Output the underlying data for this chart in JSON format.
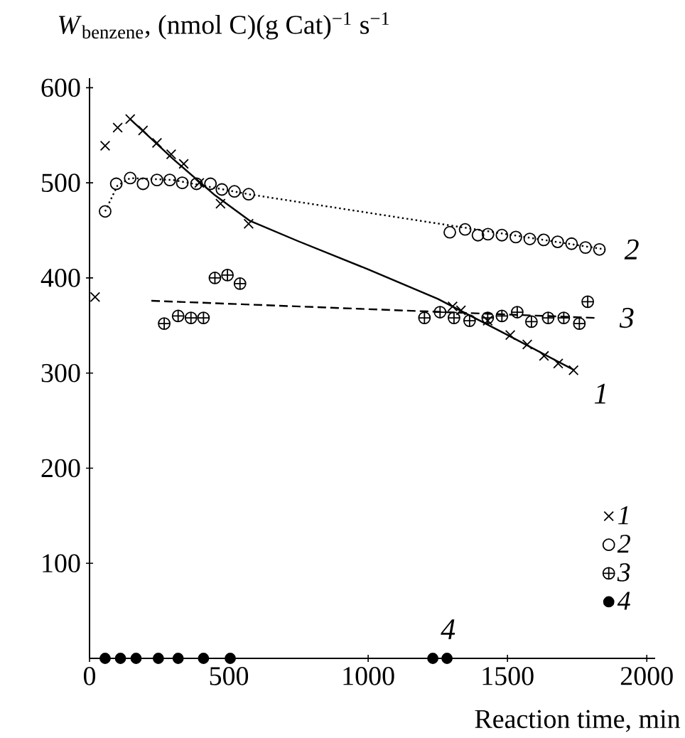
{
  "chart_data": {
    "type": "scatter",
    "xlabel": "Reaction time, min",
    "ylabel": "*W*$_{benzene}$, (nmol C)(g Cat)$^{−1}$ s$^{−1}$",
    "xlim": [
      0,
      2030
    ],
    "ylim": [
      0,
      610
    ],
    "xticks": [
      0,
      500,
      1000,
      1500,
      2000
    ],
    "yticks": [
      100,
      200,
      300,
      400,
      500,
      600
    ],
    "grid": false,
    "legend": "bottom right",
    "series": [
      {
        "name": "1",
        "color": "#000000",
        "marker": "cross",
        "x": [
          20,
          56,
          101,
          146,
          192,
          242,
          293,
          338,
          394,
          470,
          571,
          1303,
          1333,
          1429,
          1510,
          1571,
          1631,
          1682,
          1737
        ],
        "values": [
          380,
          539,
          558,
          567,
          555,
          542,
          530,
          520,
          500,
          478,
          457,
          370,
          366,
          355,
          340,
          330,
          318,
          310,
          303
        ]
      },
      {
        "name": "2",
        "color": "#000000",
        "marker": "circle",
        "x": [
          56,
          96,
          146,
          192,
          242,
          288,
          333,
          384,
          434,
          475,
          520,
          571,
          1293,
          1348,
          1394,
          1430,
          1480,
          1530,
          1580,
          1630,
          1680,
          1730,
          1780,
          1830
        ],
        "values": [
          470,
          499,
          505,
          499,
          503,
          503,
          500,
          499,
          499,
          493,
          491,
          488,
          448,
          451,
          445,
          446,
          445,
          443,
          441,
          440,
          438,
          436,
          432,
          430
        ]
      },
      {
        "name": "3",
        "color": "#000000",
        "x": [
          268,
          318,
          364,
          409,
          450,
          495,
          540,
          1202,
          1258,
          1308,
          1364,
          1429,
          1480,
          1535,
          1586,
          1646,
          1702,
          1758,
          1788
        ],
        "values": [
          352,
          360,
          358,
          358,
          400,
          403,
          394,
          358,
          364,
          358,
          355,
          358,
          360,
          364,
          354,
          358,
          358,
          352,
          375
        ]
      },
      {
        "name": "4",
        "color": "#000000",
        "marker": "dot",
        "x": [
          56,
          111,
          167,
          247,
          318,
          409,
          505,
          1232,
          1283
        ],
        "values": [
          0,
          0,
          0,
          0,
          0,
          0,
          0,
          0,
          0
        ]
      },
      {
        "type": "line",
        "color": "#000000",
        "line_style": "solid",
        "x": [
          146,
          300,
          450,
          576,
          746,
          1000,
          1250,
          1500,
          1740
        ],
        "values": [
          567,
          525,
          487,
          460,
          439,
          409,
          378,
          340,
          303
        ]
      },
      {
        "type": "line",
        "color": "#000000",
        "line_style": "dotted",
        "x": [
          56,
          100,
          146,
          300,
          571,
          1850
        ],
        "values": [
          470,
          497,
          505,
          503,
          488,
          430
        ]
      },
      {
        "type": "line",
        "color": "#000000",
        "line_style": "dashed",
        "x": [
          222,
          1813
        ],
        "values": [
          376,
          358
        ]
      }
    ],
    "annotations": [
      {
        "text": "1",
        "x": 1740,
        "y": 303
      },
      {
        "text": "2",
        "x": 1830,
        "y": 430
      },
      {
        "text": "3",
        "x": 1813,
        "y": 358
      },
      {
        "text": "4",
        "x": 1232,
        "y": 0
      }
    ]
  }
}
